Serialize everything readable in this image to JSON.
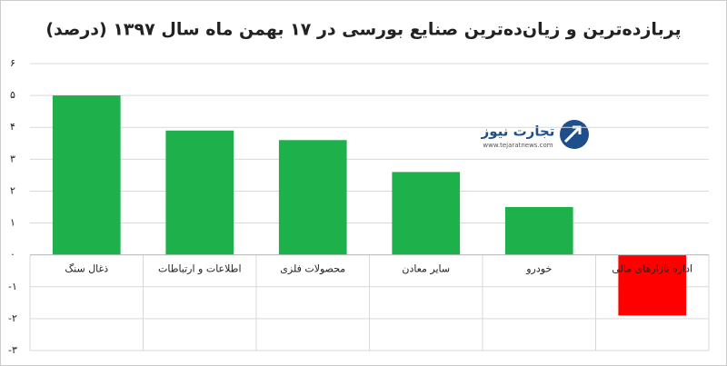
{
  "chart_data": {
    "type": "bar",
    "title": "پربازده‌ترین و زیان‌ده‌ترین صنایع بورسی در ۱۷ بهمن ماه سال ۱۳۹۷ (درصد)",
    "categories": [
      "ذغال سنگ",
      "اطلاعات و ارتباطات",
      "محصولات فلزی",
      "سایر معادن",
      "خودرو",
      "اداره بازارهای مالی"
    ],
    "values": [
      5.0,
      3.9,
      3.6,
      2.6,
      1.5,
      -1.9
    ],
    "colors": [
      "#1db04b",
      "#1db04b",
      "#1db04b",
      "#1db04b",
      "#1db04b",
      "#ff0000"
    ],
    "ylim": [
      -3,
      6
    ],
    "yticks": [
      {
        "value": -3,
        "label": "-۳"
      },
      {
        "value": -2,
        "label": "-۲"
      },
      {
        "value": -1,
        "label": "-۱"
      },
      {
        "value": 0,
        "label": "۰"
      },
      {
        "value": 1,
        "label": "۱"
      },
      {
        "value": 2,
        "label": "۲"
      },
      {
        "value": 3,
        "label": "۳"
      },
      {
        "value": 4,
        "label": "۴"
      },
      {
        "value": 5,
        "label": "۵"
      },
      {
        "value": 6,
        "label": "۶"
      }
    ],
    "grid": true,
    "watermark": {
      "text": "تجارت نیوز",
      "url": "www.tejaratnews.com"
    }
  }
}
